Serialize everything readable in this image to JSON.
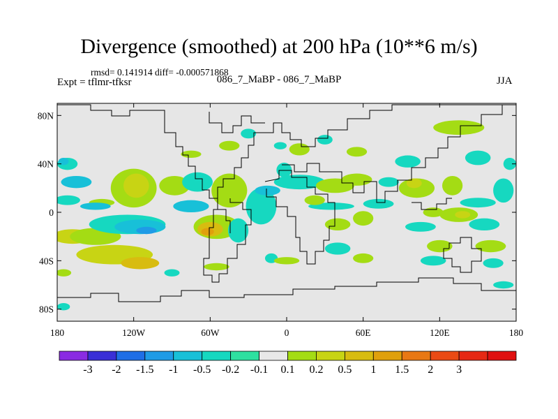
{
  "header": {
    "title": "Divergence (smoothed) at 200 hPa (10**6 m/s)",
    "stats": "rmsd= 0.141914 diff= -0.000571868",
    "expt": "Expt = tflmr-tfksr",
    "case": "086_7_MaBP - 086_7_MaBP",
    "season": "JJA"
  },
  "chart_data": {
    "type": "heatmap",
    "title": "Divergence (smoothed) at 200 hPa (10**6 m/s)",
    "projection": "cylindrical-equidistant",
    "xlim": [
      -180,
      180
    ],
    "ylim": [
      -90,
      90
    ],
    "x_ticks": [
      {
        "value": -180,
        "label": "180"
      },
      {
        "value": -120,
        "label": "120W"
      },
      {
        "value": -60,
        "label": "60W"
      },
      {
        "value": 0,
        "label": "0"
      },
      {
        "value": 60,
        "label": "60E"
      },
      {
        "value": 120,
        "label": "120E"
      },
      {
        "value": 180,
        "label": "180"
      }
    ],
    "y_ticks": [
      {
        "value": 80,
        "label": "80N"
      },
      {
        "value": 40,
        "label": "40N"
      },
      {
        "value": 0,
        "label": "0"
      },
      {
        "value": -40,
        "label": "40S"
      },
      {
        "value": -80,
        "label": "80S"
      }
    ],
    "background_color": "#e6e6e6",
    "colorbar": {
      "colors": [
        "#8a2be2",
        "#3a2fd6",
        "#1f6ee6",
        "#1f9be6",
        "#18c0d8",
        "#16d8c0",
        "#2ee0a0",
        "#e8e8e8",
        "#a4dc14",
        "#c8d414",
        "#d8bc10",
        "#e0a00c",
        "#e87814",
        "#ea4a14",
        "#e62814",
        "#e01010"
      ],
      "labels": [
        "-3",
        "-2",
        "-1.5",
        "-1",
        "-0.5",
        "-0.2",
        "-0.1",
        "0.1",
        "0.2",
        "0.5",
        "1",
        "1.5",
        "2",
        "3"
      ]
    },
    "regions": [
      {
        "lon": -165,
        "lat": 25,
        "rx": 12,
        "ry": 5,
        "level": 4
      },
      {
        "lon": -172,
        "lat": 10,
        "rx": 10,
        "ry": 4,
        "level": 5
      },
      {
        "lon": -168,
        "lat": -20,
        "rx": 16,
        "ry": 6,
        "level": 9
      },
      {
        "lon": -150,
        "lat": -20,
        "rx": 20,
        "ry": 7,
        "level": 8
      },
      {
        "lon": -135,
        "lat": -35,
        "rx": 30,
        "ry": 8,
        "level": 9
      },
      {
        "lon": -115,
        "lat": -42,
        "rx": 15,
        "ry": 5,
        "level": 10
      },
      {
        "lon": -120,
        "lat": 20,
        "rx": 18,
        "ry": 16,
        "level": 8
      },
      {
        "lon": -118,
        "lat": 22,
        "rx": 10,
        "ry": 10,
        "level": 9
      },
      {
        "lon": -88,
        "lat": 22,
        "rx": 12,
        "ry": 8,
        "level": 8
      },
      {
        "lon": -145,
        "lat": 8,
        "rx": 10,
        "ry": 3,
        "level": 8
      },
      {
        "lon": -150,
        "lat": 5,
        "rx": 12,
        "ry": 3,
        "level": 4
      },
      {
        "lon": -75,
        "lat": 5,
        "rx": 14,
        "ry": 5,
        "level": 4
      },
      {
        "lon": -125,
        "lat": -10,
        "rx": 30,
        "ry": 8,
        "level": 5
      },
      {
        "lon": -115,
        "lat": -12,
        "rx": 20,
        "ry": 6,
        "level": 4
      },
      {
        "lon": -110,
        "lat": -15,
        "rx": 8,
        "ry": 3,
        "level": 3
      },
      {
        "lon": -70,
        "lat": 25,
        "rx": 12,
        "ry": 8,
        "level": 5
      },
      {
        "lon": -45,
        "lat": 18,
        "rx": 14,
        "ry": 14,
        "level": 8
      },
      {
        "lon": -55,
        "lat": -12,
        "rx": 18,
        "ry": 10,
        "level": 8
      },
      {
        "lon": -60,
        "lat": -14,
        "rx": 10,
        "ry": 6,
        "level": 10
      },
      {
        "lon": -62,
        "lat": -16,
        "rx": 5,
        "ry": 3,
        "level": 11
      },
      {
        "lon": -38,
        "lat": -15,
        "rx": 8,
        "ry": 10,
        "level": 5
      },
      {
        "lon": -20,
        "lat": 5,
        "rx": 12,
        "ry": 15,
        "level": 5
      },
      {
        "lon": -15,
        "lat": 18,
        "rx": 10,
        "ry": 4,
        "level": 4
      },
      {
        "lon": -2,
        "lat": 35,
        "rx": 6,
        "ry": 6,
        "level": 5
      },
      {
        "lon": 10,
        "lat": 25,
        "rx": 20,
        "ry": 6,
        "level": 5
      },
      {
        "lon": -12,
        "lat": -38,
        "rx": 5,
        "ry": 4,
        "level": 5
      },
      {
        "lon": 38,
        "lat": 22,
        "rx": 15,
        "ry": 6,
        "level": 8
      },
      {
        "lon": 55,
        "lat": 27,
        "rx": 12,
        "ry": 5,
        "level": 8
      },
      {
        "lon": 35,
        "lat": 5,
        "rx": 18,
        "ry": 3,
        "level": 5
      },
      {
        "lon": 40,
        "lat": -10,
        "rx": 10,
        "ry": 5,
        "level": 8
      },
      {
        "lon": 60,
        "lat": -5,
        "rx": 8,
        "ry": 6,
        "level": 8
      },
      {
        "lon": 72,
        "lat": 7,
        "rx": 12,
        "ry": 4,
        "level": 5
      },
      {
        "lon": 80,
        "lat": 25,
        "rx": 8,
        "ry": 4,
        "level": 5
      },
      {
        "lon": 102,
        "lat": 20,
        "rx": 14,
        "ry": 8,
        "level": 8
      },
      {
        "lon": 100,
        "lat": 24,
        "rx": 6,
        "ry": 4,
        "level": 9
      },
      {
        "lon": 130,
        "lat": 22,
        "rx": 8,
        "ry": 8,
        "level": 8
      },
      {
        "lon": 150,
        "lat": 8,
        "rx": 14,
        "ry": 4,
        "level": 5
      },
      {
        "lon": 170,
        "lat": 18,
        "rx": 8,
        "ry": 10,
        "level": 5
      },
      {
        "lon": 115,
        "lat": 0,
        "rx": 8,
        "ry": 4,
        "level": 8
      },
      {
        "lon": 135,
        "lat": -2,
        "rx": 15,
        "ry": 6,
        "level": 8
      },
      {
        "lon": 138,
        "lat": -2,
        "rx": 6,
        "ry": 3,
        "level": 9
      },
      {
        "lon": 105,
        "lat": -12,
        "rx": 12,
        "ry": 4,
        "level": 5
      },
      {
        "lon": 155,
        "lat": -10,
        "rx": 12,
        "ry": 5,
        "level": 5
      },
      {
        "lon": 120,
        "lat": -28,
        "rx": 10,
        "ry": 5,
        "level": 8
      },
      {
        "lon": 160,
        "lat": -28,
        "rx": 12,
        "ry": 5,
        "level": 8
      },
      {
        "lon": 115,
        "lat": -40,
        "rx": 10,
        "ry": 4,
        "level": 5
      },
      {
        "lon": 162,
        "lat": -42,
        "rx": 8,
        "ry": 4,
        "level": 5
      },
      {
        "lon": 40,
        "lat": -30,
        "rx": 10,
        "ry": 5,
        "level": 5
      },
      {
        "lon": 60,
        "lat": -38,
        "rx": 8,
        "ry": 4,
        "level": 8
      },
      {
        "lon": 0,
        "lat": -40,
        "rx": 10,
        "ry": 3,
        "level": 8
      },
      {
        "lon": 135,
        "lat": 70,
        "rx": 20,
        "ry": 6,
        "level": 8
      },
      {
        "lon": 150,
        "lat": 45,
        "rx": 10,
        "ry": 6,
        "level": 5
      },
      {
        "lon": 95,
        "lat": 42,
        "rx": 10,
        "ry": 5,
        "level": 5
      },
      {
        "lon": 30,
        "lat": 60,
        "rx": 6,
        "ry": 4,
        "level": 5
      },
      {
        "lon": 55,
        "lat": 50,
        "rx": 8,
        "ry": 4,
        "level": 8
      },
      {
        "lon": 10,
        "lat": 52,
        "rx": 8,
        "ry": 5,
        "level": 8
      },
      {
        "lon": -5,
        "lat": 55,
        "rx": 5,
        "ry": 3,
        "level": 5
      },
      {
        "lon": -30,
        "lat": 65,
        "rx": 6,
        "ry": 4,
        "level": 5
      },
      {
        "lon": -45,
        "lat": 55,
        "rx": 8,
        "ry": 4,
        "level": 8
      },
      {
        "lon": -75,
        "lat": 48,
        "rx": 8,
        "ry": 3,
        "level": 8
      },
      {
        "lon": -172,
        "lat": 40,
        "rx": 8,
        "ry": 5,
        "level": 5
      },
      {
        "lon": -175,
        "lat": 42,
        "rx": 4,
        "ry": 3,
        "level": 4
      },
      {
        "lon": 175,
        "lat": 40,
        "rx": 5,
        "ry": 5,
        "level": 5
      },
      {
        "lon": -175,
        "lat": -50,
        "rx": 6,
        "ry": 3,
        "level": 8
      },
      {
        "lon": 170,
        "lat": -60,
        "rx": 8,
        "ry": 3,
        "level": 5
      },
      {
        "lon": -175,
        "lat": -78,
        "rx": 5,
        "ry": 3,
        "level": 5
      },
      {
        "lon": -55,
        "lat": -45,
        "rx": 10,
        "ry": 3,
        "level": 8
      },
      {
        "lon": -90,
        "lat": -50,
        "rx": 6,
        "ry": 3,
        "level": 5
      },
      {
        "lon": 22,
        "lat": 10,
        "rx": 8,
        "ry": 4,
        "level": 8
      }
    ]
  }
}
